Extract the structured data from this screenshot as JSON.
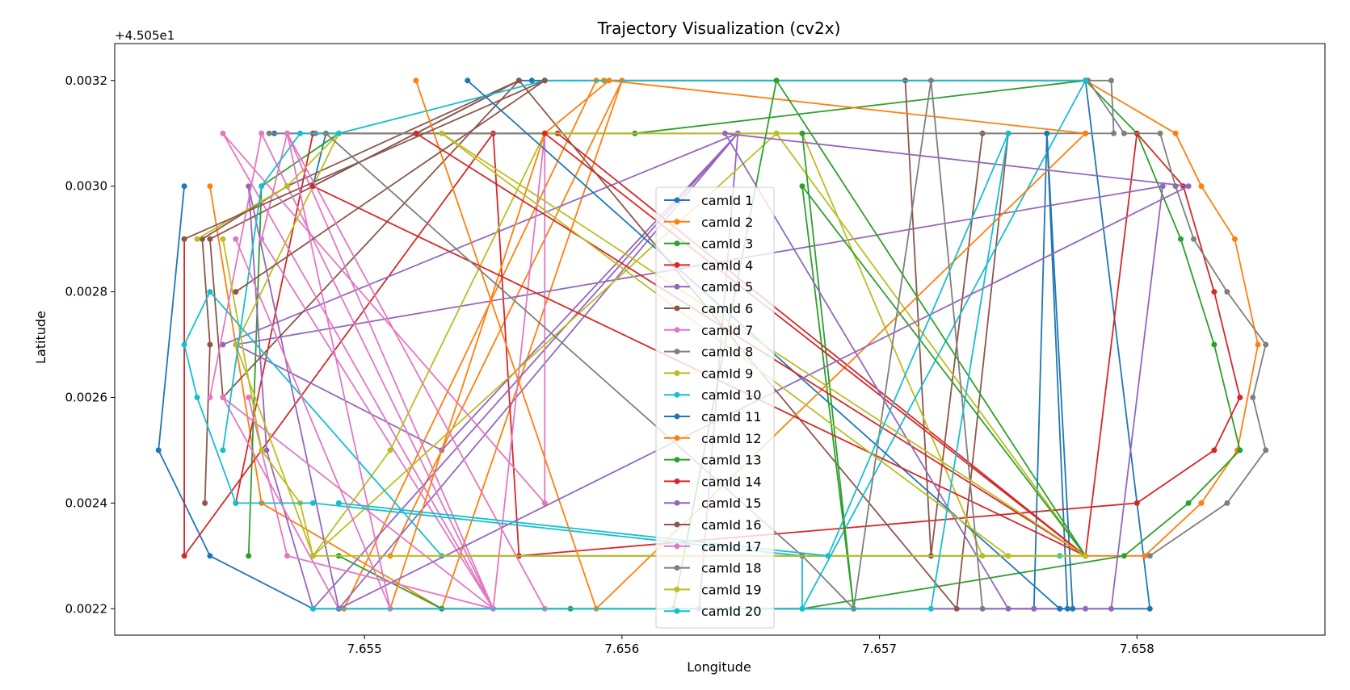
{
  "chart_data": {
    "type": "line",
    "title": "Trajectory Visualization (cv2x)",
    "xlabel": "Longitude",
    "ylabel": "Latitude",
    "y_offset_label": "+4.505e1",
    "xlim": [
      7.65403,
      7.65873
    ],
    "ylim": [
      0.00215,
      0.00327
    ],
    "x_ticks": [
      7.655,
      7.656,
      7.657,
      7.658
    ],
    "x_tick_labels": [
      "7.655",
      "7.656",
      "7.657",
      "7.658"
    ],
    "y_ticks": [
      0.0022,
      0.0024,
      0.0026,
      0.0028,
      0.003,
      0.0032
    ],
    "y_tick_labels": [
      "0.0022",
      "0.0024",
      "0.0026",
      "0.0028",
      "0.0030",
      "0.0032"
    ],
    "grid": false,
    "legend_position": "center",
    "series": [
      {
        "name": "camId 1",
        "color": "#1f77b4",
        "x": [
          7.65465,
          7.65485,
          7.6548,
          7.6556,
          7.65565,
          7.6578,
          7.65805,
          7.6576,
          7.65765,
          7.65773,
          7.6576,
          7.6548,
          7.6544,
          7.6542,
          7.6543
        ],
        "y": [
          0.0031,
          0.0031,
          0.003,
          0.0032,
          0.0032,
          0.0032,
          0.0022,
          0.0022,
          0.0031,
          0.0022,
          0.0022,
          0.0022,
          0.0023,
          0.0025,
          0.003
        ]
      },
      {
        "name": "camId 2",
        "color": "#ff7f0e",
        "x": [
          7.65492,
          7.6559,
          7.65593,
          7.6578,
          7.65815,
          7.65825,
          7.65838,
          7.65847,
          7.65839,
          7.65825,
          7.65803,
          7.6578,
          7.6551,
          7.656,
          7.6553,
          7.6546,
          7.6544
        ],
        "y": [
          0.0022,
          0.0032,
          0.0032,
          0.0032,
          0.0031,
          0.003,
          0.0029,
          0.0027,
          0.0025,
          0.0024,
          0.0023,
          0.0023,
          0.0023,
          0.0032,
          0.0022,
          0.0024,
          0.003
        ]
      },
      {
        "name": "camId 3",
        "color": "#2ca02c",
        "x": [
          7.65455,
          7.6546,
          7.6549,
          7.65605,
          7.6578,
          7.658,
          7.65817,
          7.6583,
          7.6584,
          7.6582,
          7.65795,
          7.6567,
          7.6558,
          7.6553,
          7.6549
        ],
        "y": [
          0.0023,
          0.003,
          0.0031,
          0.0031,
          0.0032,
          0.0031,
          0.0029,
          0.0027,
          0.0025,
          0.0024,
          0.0023,
          0.0022,
          0.0022,
          0.0022,
          0.0023
        ]
      },
      {
        "name": "camId 4",
        "color": "#d62728",
        "x": [
          7.6545,
          7.6548,
          7.65575,
          7.6578,
          7.658,
          7.65818,
          7.6583,
          7.6584,
          7.6583,
          7.658,
          7.6556,
          7.6555,
          7.6543,
          7.6543
        ],
        "y": [
          0.0024,
          0.0031,
          0.0031,
          0.0023,
          0.0031,
          0.003,
          0.0028,
          0.0026,
          0.0025,
          0.0024,
          0.0023,
          0.0031,
          0.0023,
          0.0029
        ]
      },
      {
        "name": "camId 5",
        "color": "#9467bd",
        "x": [
          7.65445,
          7.65645,
          7.6548,
          7.65462,
          7.65455,
          7.6549,
          7.65645,
          7.6553,
          7.6545,
          7.6581,
          7.6579,
          7.6578,
          7.6563,
          7.65645
        ],
        "y": [
          0.0027,
          0.0031,
          0.0022,
          0.0025,
          0.003,
          0.0022,
          0.0031,
          0.0025,
          0.0027,
          0.003,
          0.0022,
          0.0022,
          0.0022,
          0.0031
        ]
      },
      {
        "name": "camId 6",
        "color": "#8c564b",
        "x": [
          7.65438,
          7.6544,
          7.65437,
          7.6547,
          7.6556,
          7.65445,
          7.6544,
          7.6556,
          7.6573,
          7.6575,
          7.6574,
          7.6572,
          7.6571
        ],
        "y": [
          0.0024,
          0.0027,
          0.0029,
          0.003,
          0.0032,
          0.0026,
          0.0029,
          0.0032,
          0.0022,
          0.0031,
          0.0031,
          0.0023,
          0.0032
        ]
      },
      {
        "name": "camId 7",
        "color": "#e377c2",
        "x": [
          7.6544,
          7.6546,
          7.6555,
          7.6547,
          7.6546,
          7.6555,
          7.65445,
          7.6549,
          7.6555,
          7.6557,
          7.6557,
          7.65445,
          7.6555,
          7.6547,
          7.65455
        ],
        "y": [
          0.0026,
          0.0031,
          0.0022,
          0.0031,
          0.0029,
          0.0022,
          0.0026,
          0.0022,
          0.0022,
          0.0031,
          0.0024,
          0.0031,
          0.0022,
          0.0023,
          0.0026
        ]
      },
      {
        "name": "camId 8",
        "color": "#7f7f7f",
        "x": [
          7.65463,
          7.65481,
          7.6578,
          7.65791,
          7.6579,
          7.65781,
          7.65795,
          7.65809,
          7.65815,
          7.65822,
          7.65835,
          7.6585,
          7.65845,
          7.6585,
          7.65835,
          7.65805
        ],
        "y": [
          0.0031,
          0.0031,
          0.0031,
          0.0031,
          0.0032,
          0.0032,
          0.0031,
          0.0031,
          0.003,
          0.0029,
          0.0028,
          0.0027,
          0.0026,
          0.0025,
          0.0024,
          0.0023
        ]
      },
      {
        "name": "camId 9",
        "color": "#bcbd22",
        "x": [
          7.65435,
          7.6547,
          7.6549,
          7.6545,
          7.6548,
          7.6551,
          7.6557,
          7.6566,
          7.6567,
          7.6574,
          7.6578,
          7.6566,
          7.6548,
          7.65475,
          7.6546,
          7.65445
        ],
        "y": [
          0.0029,
          0.003,
          0.0031,
          0.0027,
          0.0023,
          0.0025,
          0.0031,
          0.0031,
          0.0031,
          0.0023,
          0.0023,
          0.0031,
          0.0023,
          0.0024,
          0.0025,
          0.0029
        ]
      },
      {
        "name": "camId 10",
        "color": "#17becf",
        "x": [
          7.65445,
          7.6546,
          7.65475,
          7.6549,
          7.6557,
          7.6578,
          7.6578,
          7.6567,
          7.6567,
          7.6548,
          7.6545,
          7.65435,
          7.6543,
          7.6544,
          7.6553,
          7.6577
        ],
        "y": [
          0.0025,
          0.003,
          0.0031,
          0.0031,
          0.0032,
          0.0032,
          0.0032,
          0.0022,
          0.0023,
          0.0024,
          0.0024,
          0.0026,
          0.0027,
          0.0028,
          0.0023,
          0.0023
        ]
      },
      {
        "name": "camId 11",
        "color": "#1f77b4",
        "x": [
          7.6554,
          7.6577,
          7.65775,
          7.65765
        ],
        "y": [
          0.0032,
          0.0022,
          0.0022,
          0.0031
        ]
      },
      {
        "name": "camId 12",
        "color": "#ff7f0e",
        "x": [
          7.6551,
          7.6557,
          7.65595,
          7.6578,
          7.6559,
          7.6552
        ],
        "y": [
          0.0022,
          0.0031,
          0.0032,
          0.0031,
          0.0022,
          0.0032
        ]
      },
      {
        "name": "camId 13",
        "color": "#2ca02c",
        "x": [
          7.6567,
          7.6569,
          7.6567,
          7.6578,
          7.6566,
          7.6562
        ],
        "y": [
          0.0031,
          0.0022,
          0.003,
          0.0023,
          0.0032,
          0.0022
        ]
      },
      {
        "name": "camId 14",
        "color": "#d62728",
        "x": [
          7.6557,
          7.6578,
          7.6548,
          7.6578,
          7.6552
        ],
        "y": [
          0.0031,
          0.0023,
          0.003,
          0.0023,
          0.0031
        ]
      },
      {
        "name": "camId 15",
        "color": "#9467bd",
        "x": [
          7.6549,
          7.6582,
          7.6564,
          7.6575,
          7.6576
        ],
        "y": [
          0.0022,
          0.003,
          0.0031,
          0.0022,
          0.0022
        ]
      },
      {
        "name": "camId 16",
        "color": "#8c564b",
        "x": [
          7.6543,
          7.6557,
          7.6545,
          7.6557
        ],
        "y": [
          0.0029,
          0.0032,
          0.0028,
          0.0032
        ]
      },
      {
        "name": "camId 17",
        "color": "#e377c2",
        "x": [
          7.6545,
          7.6551,
          7.6547,
          7.6557
        ],
        "y": [
          0.0029,
          0.0022,
          0.0031,
          0.0022
        ]
      },
      {
        "name": "camId 18",
        "color": "#7f7f7f",
        "x": [
          7.65485,
          7.6567,
          7.6569,
          7.6572,
          7.6574
        ],
        "y": [
          0.0031,
          0.0023,
          0.0022,
          0.0032,
          0.0022
        ]
      },
      {
        "name": "camId 19",
        "color": "#bcbd22",
        "x": [
          7.6548,
          7.6578,
          7.6553,
          7.6575
        ],
        "y": [
          0.0023,
          0.0023,
          0.0031,
          0.0023
        ]
      },
      {
        "name": "camId 20",
        "color": "#17becf",
        "x": [
          7.6548,
          7.6572,
          7.6575,
          7.6568,
          7.6549
        ],
        "y": [
          0.0022,
          0.0022,
          0.0031,
          0.0023,
          0.0024
        ]
      }
    ]
  }
}
